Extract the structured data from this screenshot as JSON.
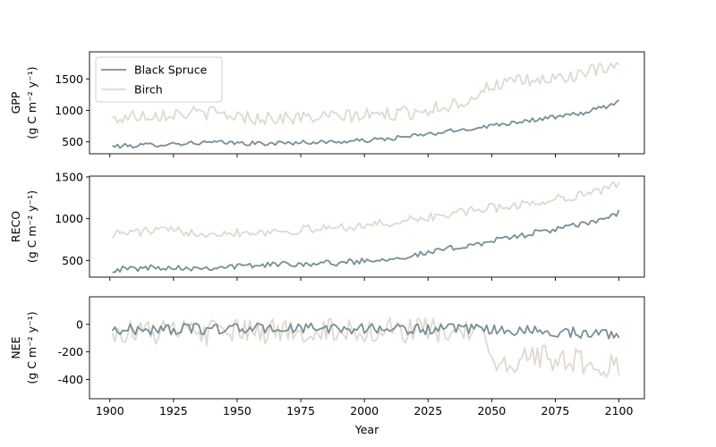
{
  "chart_data": [
    {
      "type": "line",
      "panel": "GPP",
      "ylabel_line1": "GPP",
      "ylabel_line2": "(g C m⁻² y⁻¹)",
      "xlim": [
        1892,
        2110
      ],
      "ylim": [
        310,
        1930
      ],
      "yticks": [
        500,
        1000,
        1500
      ],
      "legend": "upper-left",
      "series": [
        {
          "name": "Black Spruce",
          "color": "#778e96",
          "anchors": [
            [
              1901,
              430
            ],
            [
              1910,
              440
            ],
            [
              1925,
              470
            ],
            [
              1940,
              490
            ],
            [
              1960,
              470
            ],
            [
              1975,
              490
            ],
            [
              1990,
              500
            ],
            [
              2000,
              520
            ],
            [
              2010,
              550
            ],
            [
              2025,
              620
            ],
            [
              2040,
              700
            ],
            [
              2050,
              760
            ],
            [
              2060,
              820
            ],
            [
              2075,
              890
            ],
            [
              2085,
              950
            ],
            [
              2095,
              1060
            ],
            [
              2100,
              1140
            ]
          ],
          "amp": 35
        },
        {
          "name": "Birch",
          "color": "#e0d9cd",
          "anchors": [
            [
              1901,
              850
            ],
            [
              1910,
              920
            ],
            [
              1925,
              950
            ],
            [
              1940,
              960
            ],
            [
              1955,
              880
            ],
            [
              1975,
              880
            ],
            [
              1990,
              900
            ],
            [
              2000,
              920
            ],
            [
              2015,
              950
            ],
            [
              2030,
              1050
            ],
            [
              2040,
              1150
            ],
            [
              2050,
              1400
            ],
            [
              2060,
              1450
            ],
            [
              2075,
              1500
            ],
            [
              2090,
              1620
            ],
            [
              2100,
              1680
            ]
          ],
          "amp": 110
        }
      ]
    },
    {
      "type": "line",
      "panel": "RECO",
      "ylabel_line1": "RECO",
      "ylabel_line2": "(g C m⁻² y⁻¹)",
      "xlim": [
        1892,
        2110
      ],
      "ylim": [
        300,
        1510
      ],
      "yticks": [
        500,
        1000,
        1500
      ],
      "series": [
        {
          "name": "Black Spruce",
          "color": "#778e96",
          "anchors": [
            [
              1901,
              390
            ],
            [
              1920,
              420
            ],
            [
              1935,
              410
            ],
            [
              1950,
              430
            ],
            [
              1970,
              460
            ],
            [
              1990,
              470
            ],
            [
              2005,
              510
            ],
            [
              2020,
              560
            ],
            [
              2035,
              650
            ],
            [
              2050,
              730
            ],
            [
              2065,
              820
            ],
            [
              2080,
              900
            ],
            [
              2090,
              960
            ],
            [
              2100,
              1070
            ]
          ],
          "amp": 35
        },
        {
          "name": "Birch",
          "color": "#e0d9cd",
          "anchors": [
            [
              1901,
              820
            ],
            [
              1920,
              860
            ],
            [
              1940,
              830
            ],
            [
              1955,
              840
            ],
            [
              1975,
              860
            ],
            [
              1990,
              900
            ],
            [
              2005,
              930
            ],
            [
              2020,
              990
            ],
            [
              2035,
              1060
            ],
            [
              2050,
              1130
            ],
            [
              2065,
              1180
            ],
            [
              2080,
              1260
            ],
            [
              2090,
              1320
            ],
            [
              2100,
              1400
            ]
          ],
          "amp": 55
        }
      ]
    },
    {
      "type": "line",
      "panel": "NEE",
      "xlabel": "Year",
      "ylabel_line1": "NEE",
      "ylabel_line2": "(g C m⁻² y⁻¹)",
      "xlim": [
        1892,
        2110
      ],
      "ylim": [
        -540,
        200
      ],
      "yticks": [
        0,
        -200,
        -400
      ],
      "xticks": [
        1900,
        1925,
        1950,
        1975,
        2000,
        2025,
        2050,
        2075,
        2100
      ],
      "series": [
        {
          "name": "Black Spruce",
          "color": "#778e96",
          "anchors": [
            [
              1901,
              -40
            ],
            [
              1950,
              -30
            ],
            [
              2000,
              -30
            ],
            [
              2050,
              -40
            ],
            [
              2100,
              -70
            ]
          ],
          "amp": 40
        },
        {
          "name": "Birch",
          "color": "#e0d9cd",
          "anchors": [
            [
              1901,
              -50
            ],
            [
              1945,
              -60
            ],
            [
              1990,
              -40
            ],
            [
              2030,
              -50
            ],
            [
              2045,
              -60
            ],
            [
              2050,
              -280
            ],
            [
              2065,
              -250
            ],
            [
              2080,
              -240
            ],
            [
              2090,
              -320
            ],
            [
              2100,
              -280
            ]
          ],
          "amp": 95
        }
      ]
    }
  ]
}
